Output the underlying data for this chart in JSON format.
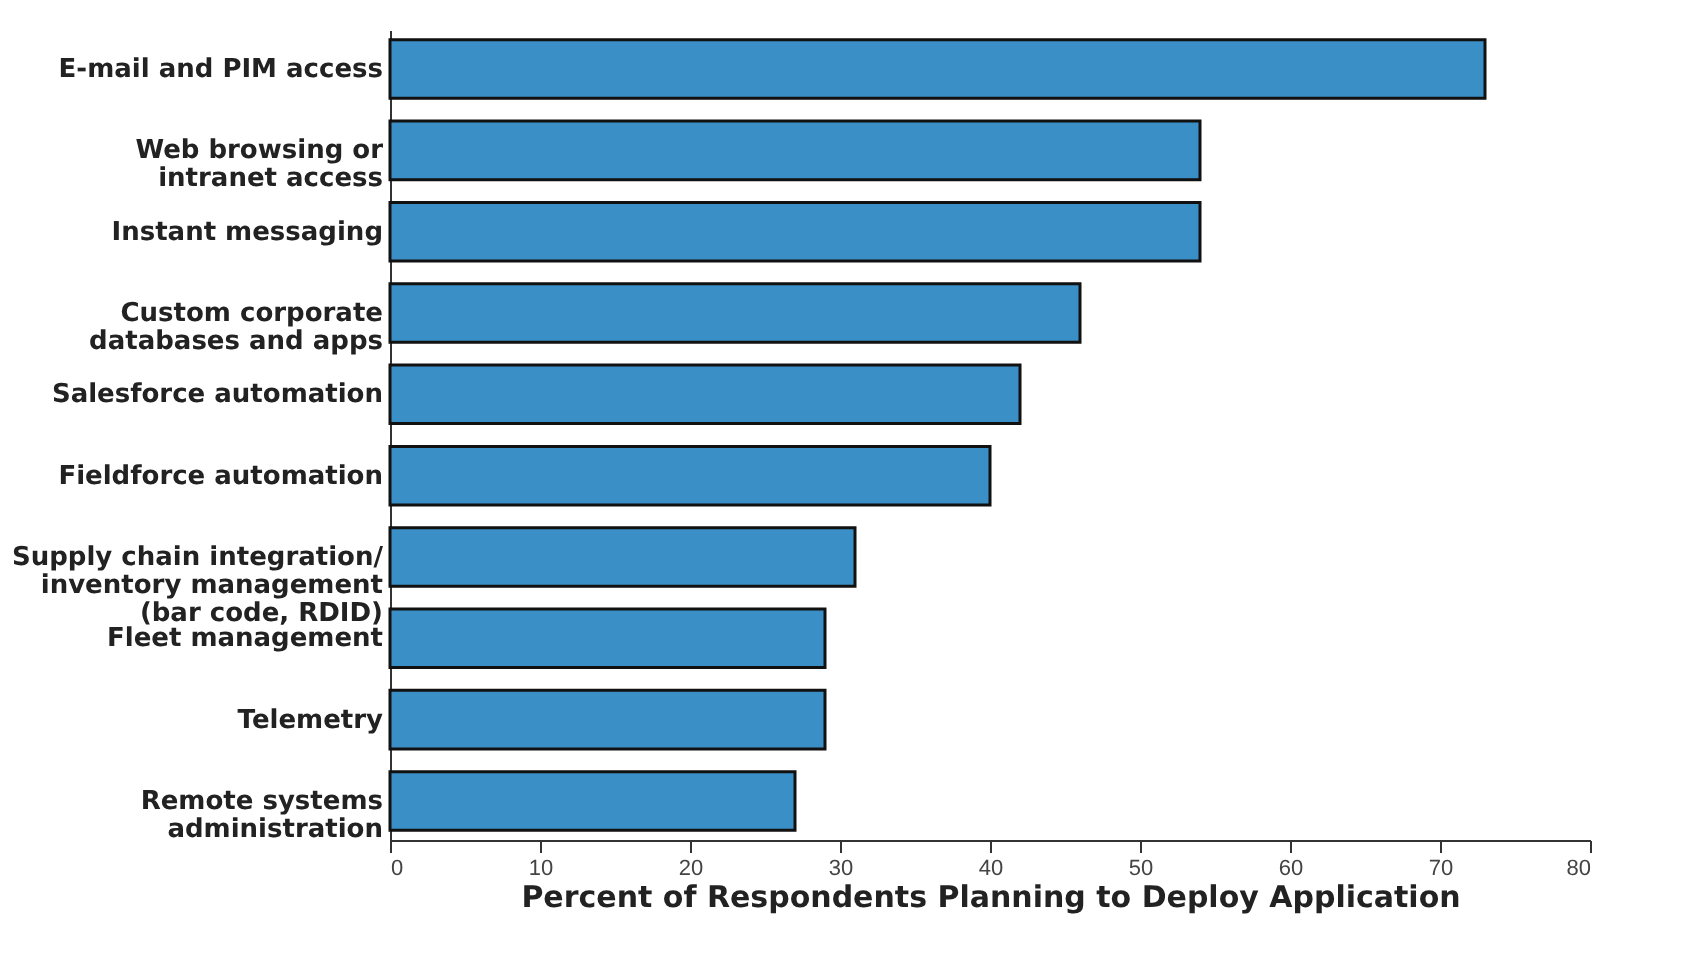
{
  "chart_data": {
    "type": "bar",
    "orientation": "horizontal",
    "xlabel": "Percent of Respondents Planning to Deploy Application",
    "categories": [
      "E-mail and PIM access",
      "Web browsing or\nintranet access",
      "Instant messaging",
      "Custom corporate\ndatabases and apps",
      "Salesforce automation",
      "Fieldforce automation",
      "Supply chain integration/\ninventory management\n(bar code, RDID)",
      "Fleet management",
      "Telemetry",
      "Remote systems\nadministration"
    ],
    "values": [
      73,
      54,
      54,
      46,
      42,
      40,
      31,
      29,
      29,
      27
    ],
    "color": "#3a8fc6",
    "xlim": [
      0,
      80
    ],
    "xticks": [
      0,
      10,
      20,
      30,
      40,
      50,
      60,
      70,
      80
    ]
  }
}
